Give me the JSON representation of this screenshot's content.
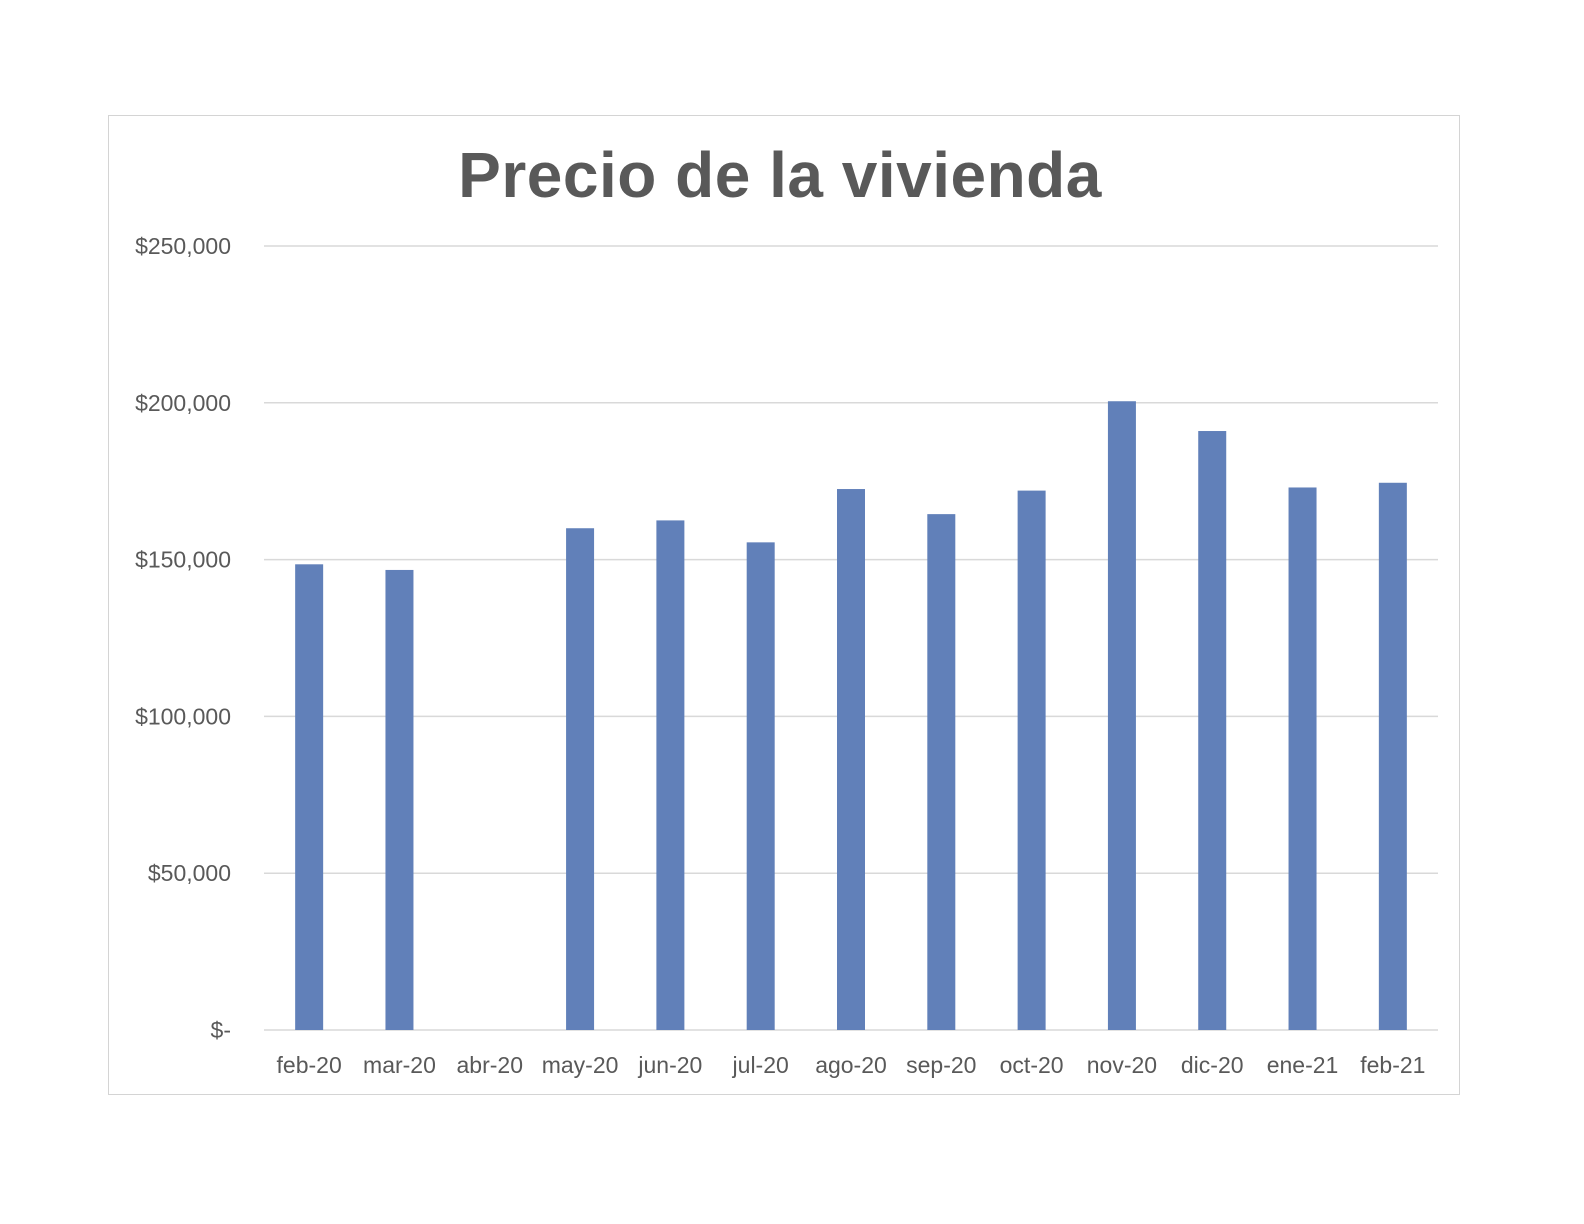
{
  "chart_data": {
    "type": "bar",
    "title": "Precio de la vivienda",
    "xlabel": "",
    "ylabel": "",
    "categories": [
      "feb-20",
      "mar-20",
      "abr-20",
      "may-20",
      "jun-20",
      "jul-20",
      "ago-20",
      "sep-20",
      "oct-20",
      "nov-20",
      "dic-20",
      "ene-21",
      "feb-21"
    ],
    "values": [
      148500,
      146700,
      null,
      160000,
      162500,
      155500,
      172500,
      164500,
      172000,
      200500,
      191000,
      173000,
      174500
    ],
    "ylim": [
      0,
      250000
    ],
    "yticks": [
      0,
      50000,
      100000,
      150000,
      200000,
      250000
    ],
    "ytick_labels": [
      "$-",
      "$50,000",
      "$100,000",
      "$150,000",
      "$200,000",
      "$250,000"
    ],
    "bar_color": "#6180b9",
    "grid_color": "#d9d9d9",
    "grid": true,
    "legend": "none"
  }
}
